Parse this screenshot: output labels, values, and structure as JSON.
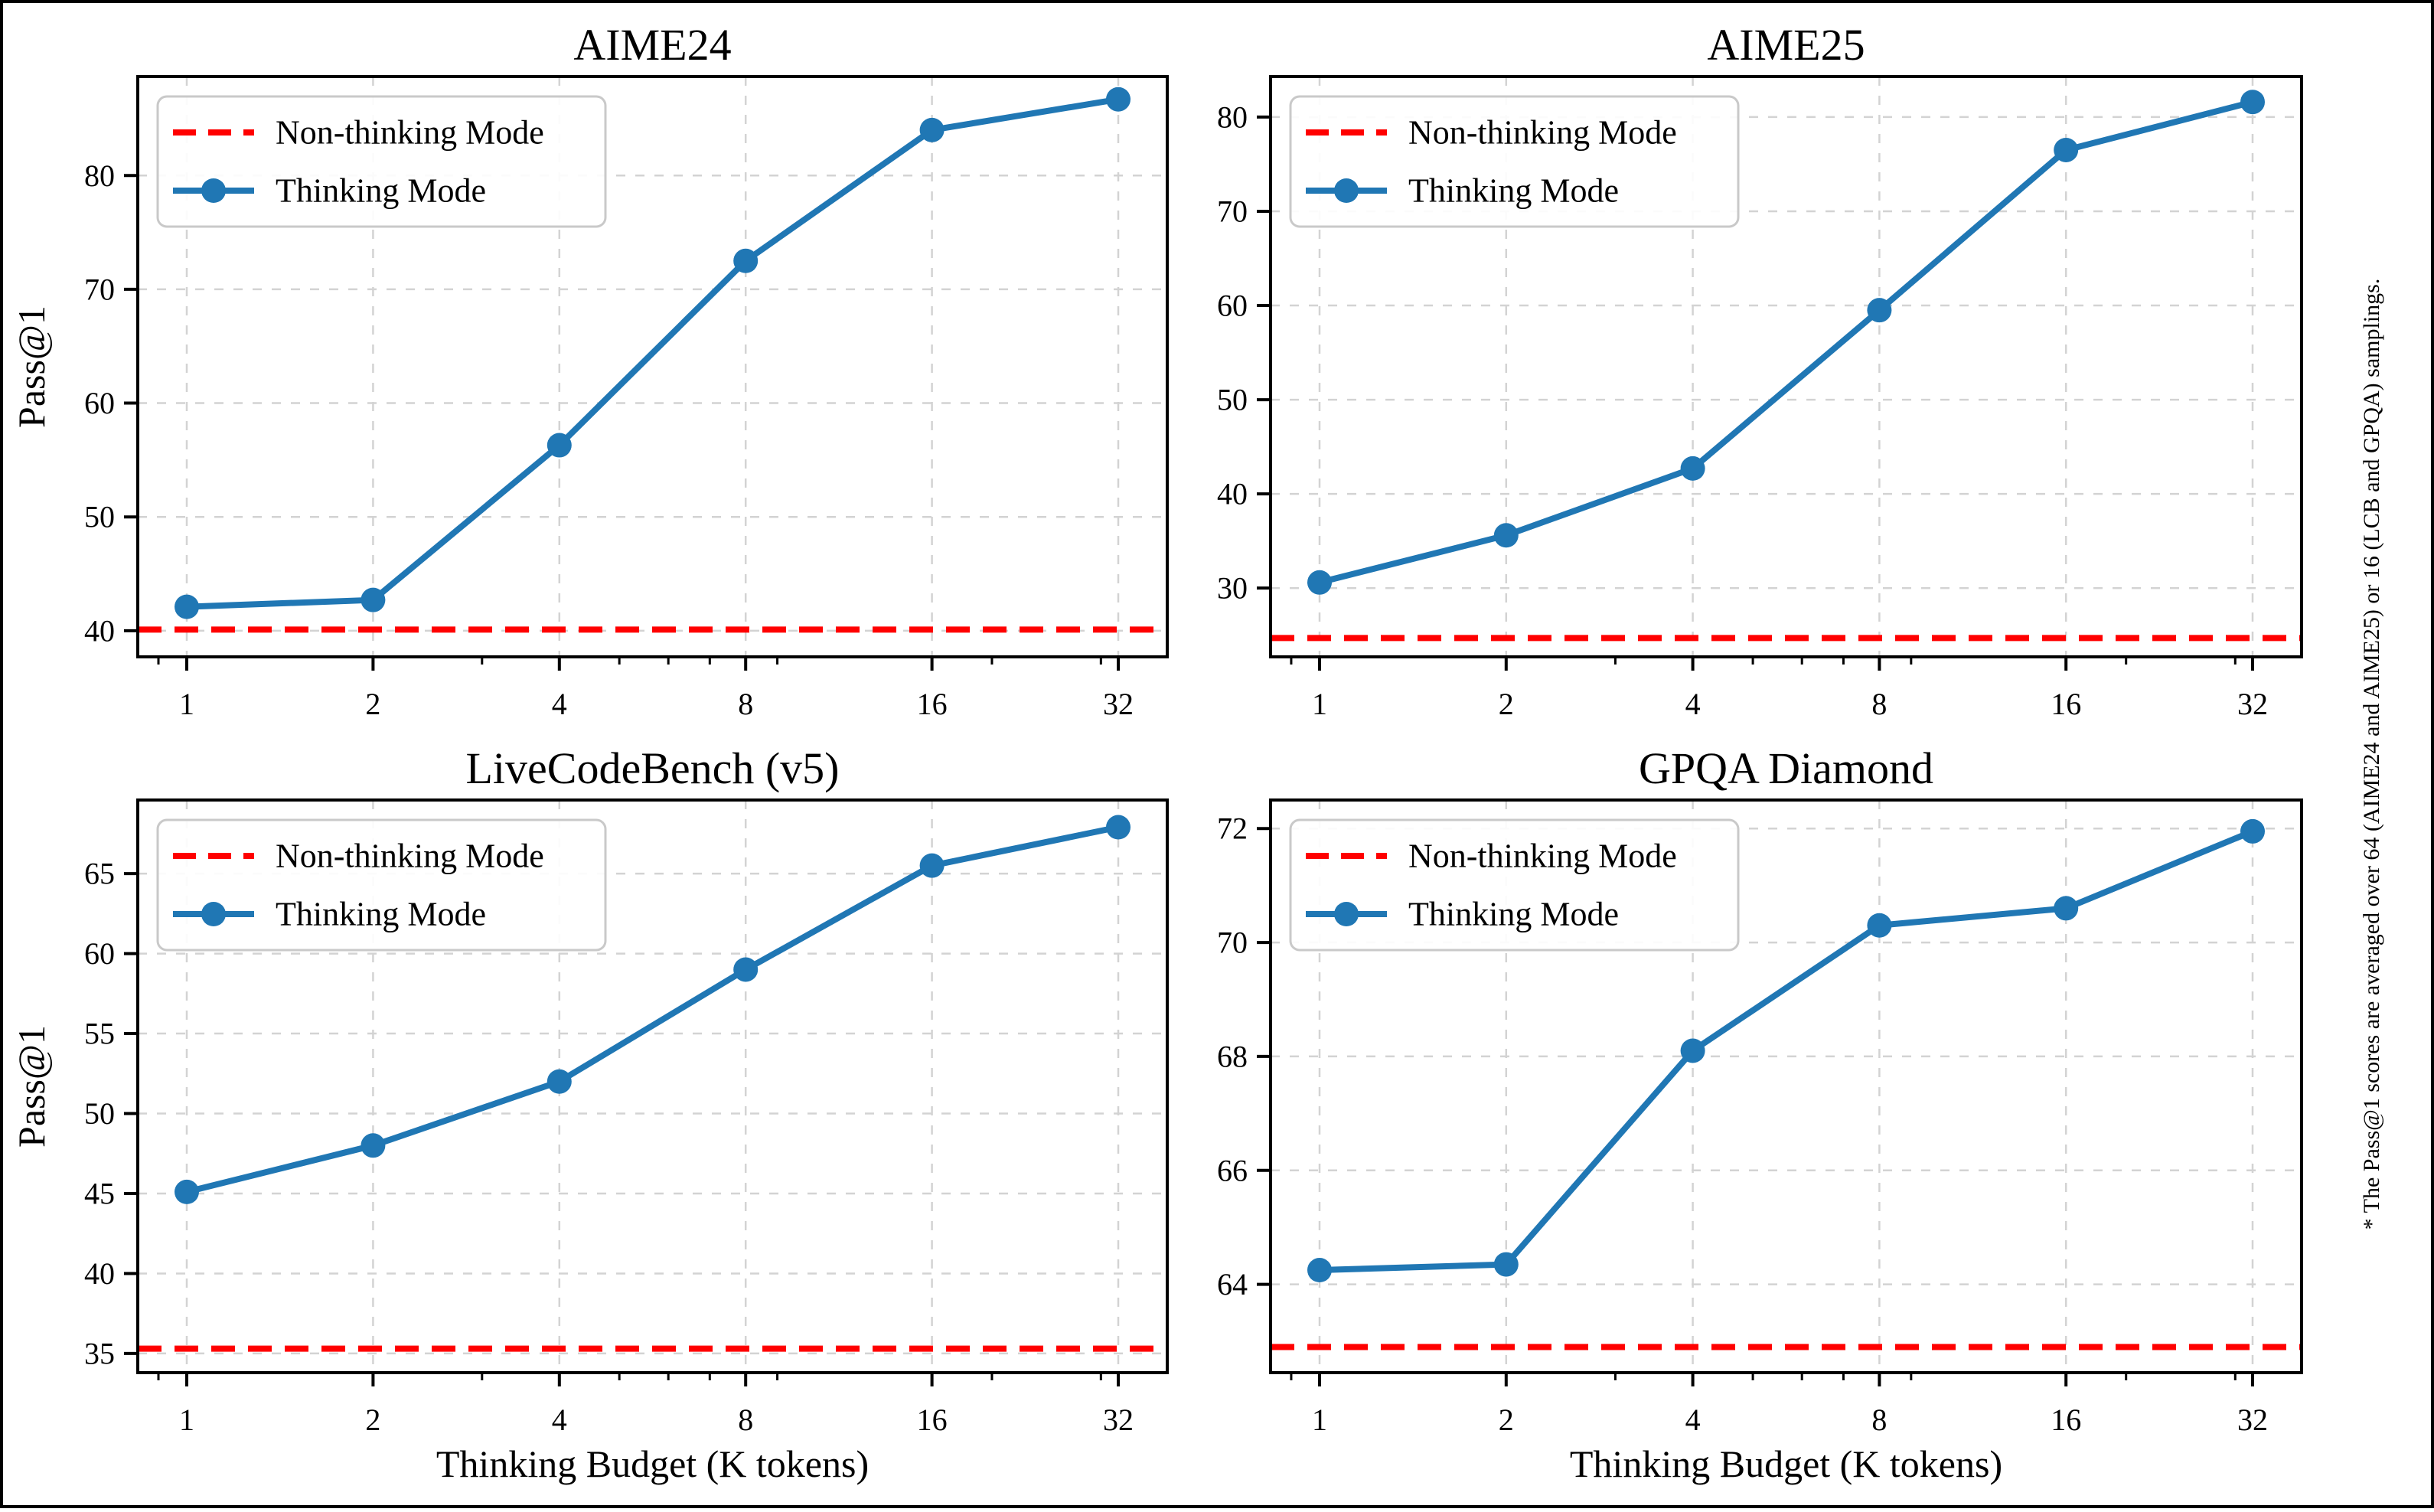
{
  "figure": {
    "footnote": "* The Pass@1 scores are averaged over 64 (AIME24 and AIME25) or 16 (LCB and GPQA) samplings.",
    "shared": {
      "xlabel": "Thinking Budget (K tokens)",
      "ylabel": "Pass@1",
      "x_scale": "log",
      "xticks": [
        1,
        2,
        4,
        8,
        16,
        32
      ],
      "minor_xticks": [
        0.9,
        3,
        5,
        6,
        7,
        9,
        20,
        30
      ],
      "legend": [
        {
          "label": "Non-thinking Mode",
          "style": "dashed",
          "color": "#ff0000"
        },
        {
          "label": "Thinking Mode",
          "style": "solid-marker",
          "color": "#2077b4"
        }
      ],
      "colors": {
        "thinking_line": "#2077b4",
        "non_thinking_line": "#ff0000",
        "grid": "#d3d3d3",
        "axis": "#000000",
        "legend_border": "#c9c9c9",
        "background": "#ffffff"
      }
    }
  },
  "chart_data": [
    {
      "id": "aime24",
      "type": "line",
      "title": "AIME24",
      "x": [
        1,
        2,
        4,
        8,
        16,
        32
      ],
      "series": [
        {
          "name": "Thinking Mode",
          "color": "#2077b4",
          "values": [
            42.1,
            42.7,
            56.3,
            72.5,
            84.0,
            86.7
          ]
        }
      ],
      "baseline": {
        "name": "Non-thinking Mode",
        "color": "#ff0000",
        "value": 40.1
      },
      "yticks": [
        40,
        50,
        60,
        70,
        80
      ],
      "ylim": [
        37.7,
        88.7
      ],
      "ylabel": "Pass@1"
    },
    {
      "id": "aime25",
      "type": "line",
      "title": "AIME25",
      "x": [
        1,
        2,
        4,
        8,
        16,
        32
      ],
      "series": [
        {
          "name": "Thinking Mode",
          "color": "#2077b4",
          "values": [
            30.6,
            35.6,
            42.7,
            59.5,
            76.5,
            81.6
          ]
        }
      ],
      "baseline": {
        "name": "Non-thinking Mode",
        "color": "#ff0000",
        "value": 24.7
      },
      "yticks": [
        30,
        40,
        50,
        60,
        70,
        80
      ],
      "ylim": [
        22.7,
        84.3
      ],
      "ylabel": ""
    },
    {
      "id": "livecodebench-v5",
      "type": "line",
      "title": "LiveCodeBench (v5)",
      "x": [
        1,
        2,
        4,
        8,
        16,
        32
      ],
      "series": [
        {
          "name": "Thinking Mode",
          "color": "#2077b4",
          "values": [
            45.1,
            48.0,
            52.0,
            59.0,
            65.5,
            67.9
          ]
        }
      ],
      "baseline": {
        "name": "Non-thinking Mode",
        "color": "#ff0000",
        "value": 35.3
      },
      "yticks": [
        35,
        40,
        45,
        50,
        55,
        60,
        65
      ],
      "ylim": [
        33.8,
        69.6
      ],
      "ylabel": "Pass@1",
      "xlabel": "Thinking Budget (K tokens)"
    },
    {
      "id": "gpqa-diamond",
      "type": "line",
      "title": "GPQA Diamond",
      "x": [
        1,
        2,
        4,
        8,
        16,
        32
      ],
      "series": [
        {
          "name": "Thinking Mode",
          "color": "#2077b4",
          "values": [
            64.25,
            64.35,
            68.1,
            70.3,
            70.6,
            71.95
          ]
        }
      ],
      "baseline": {
        "name": "Non-thinking Mode",
        "color": "#ff0000",
        "value": 62.9
      },
      "yticks": [
        64,
        66,
        68,
        70,
        72
      ],
      "ylim": [
        62.45,
        72.5
      ],
      "ylabel": "",
      "xlabel": "Thinking Budget (K tokens)"
    }
  ]
}
